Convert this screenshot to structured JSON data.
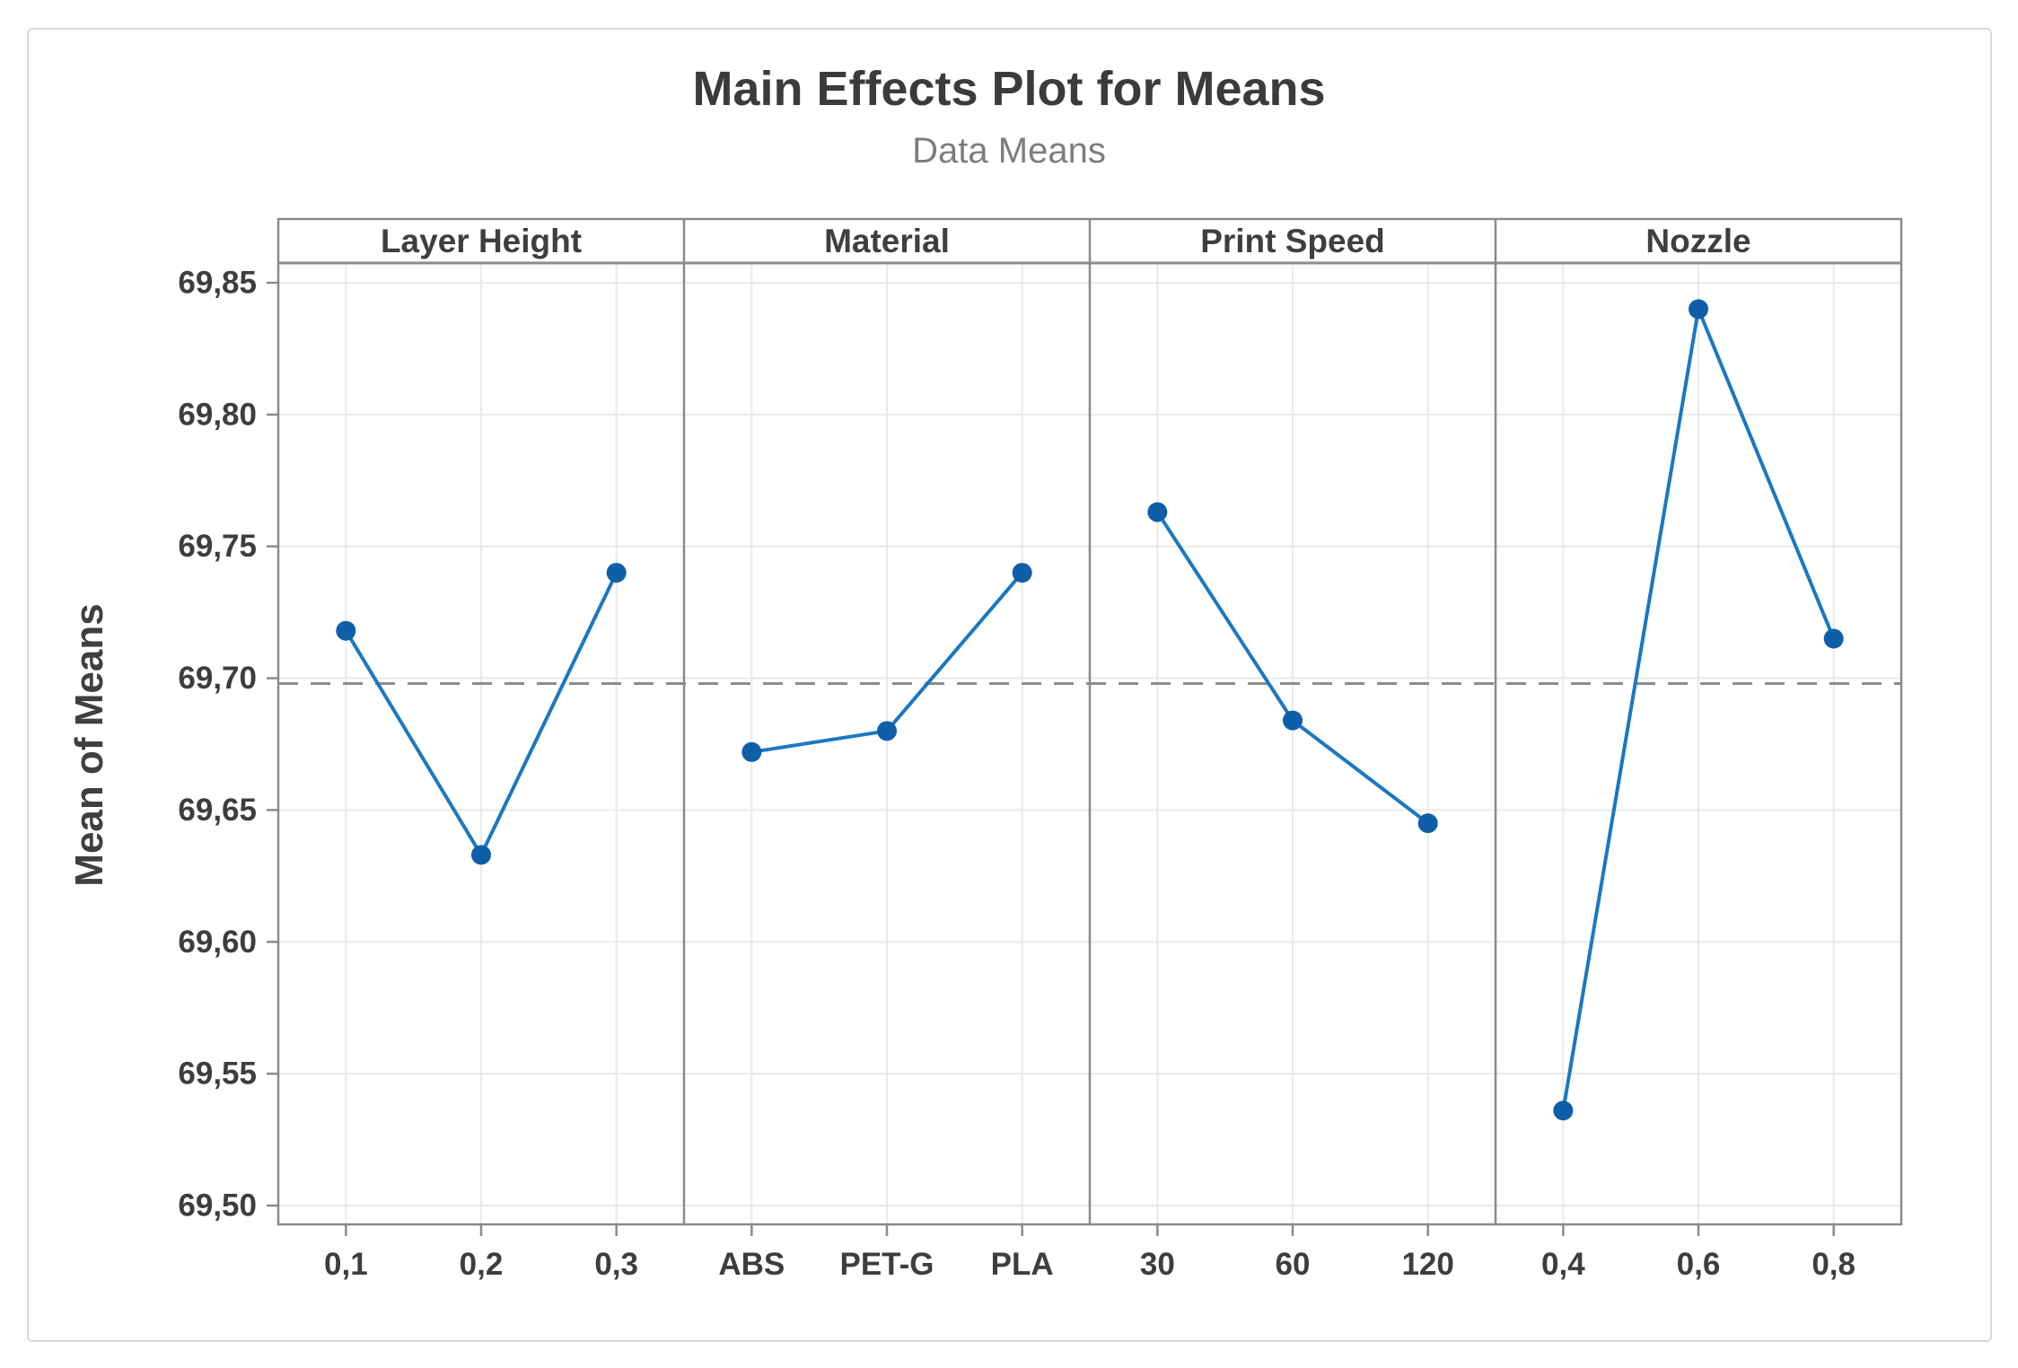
{
  "figure": {
    "title": "Main Effects Plot for Means",
    "subtitle": "Data Means",
    "y_axis_title": "Mean of Means"
  },
  "chart_data": {
    "type": "line",
    "title": "Main Effects Plot for Means",
    "subtitle": "Data Means",
    "ylabel": "Mean of Means",
    "ylim": [
      69.49,
      69.86
    ],
    "grid": true,
    "legend": "none",
    "decimal_separator": ",",
    "reference_mean": 69.698,
    "y_ticks": [
      {
        "value": 69.85,
        "label": "69,85"
      },
      {
        "value": 69.8,
        "label": "69,80"
      },
      {
        "value": 69.75,
        "label": "69,75"
      },
      {
        "value": 69.7,
        "label": "69,70"
      },
      {
        "value": 69.65,
        "label": "69,65"
      },
      {
        "value": 69.6,
        "label": "69,60"
      },
      {
        "value": 69.55,
        "label": "69,55"
      },
      {
        "value": 69.5,
        "label": "69,50"
      }
    ],
    "panels": [
      {
        "factor": "Layer Height",
        "levels": [
          "0,1",
          "0,2",
          "0,3"
        ],
        "values": [
          69.718,
          69.633,
          69.74
        ]
      },
      {
        "factor": "Material",
        "levels": [
          "ABS",
          "PET-G",
          "PLA"
        ],
        "values": [
          69.672,
          69.68,
          69.74
        ]
      },
      {
        "factor": "Print Speed",
        "levels": [
          "30",
          "60",
          "120"
        ],
        "values": [
          69.763,
          69.684,
          69.645
        ]
      },
      {
        "factor": "Nozzle",
        "levels": [
          "0,4",
          "0,6",
          "0,8"
        ],
        "values": [
          69.536,
          69.84,
          69.715
        ]
      }
    ],
    "colors": {
      "marker": "#0f5fa8",
      "line": "#1b78c0",
      "grid": "#eaeaea",
      "frame": "#8a8a8a",
      "reference_line": "#8c8c8c",
      "title_text": "#3b3b3b",
      "subtitle_text": "#7d7d7d",
      "tick_text": "#3d3d3d",
      "outer_border": "#d9d9d9",
      "background": "#ffffff"
    }
  }
}
